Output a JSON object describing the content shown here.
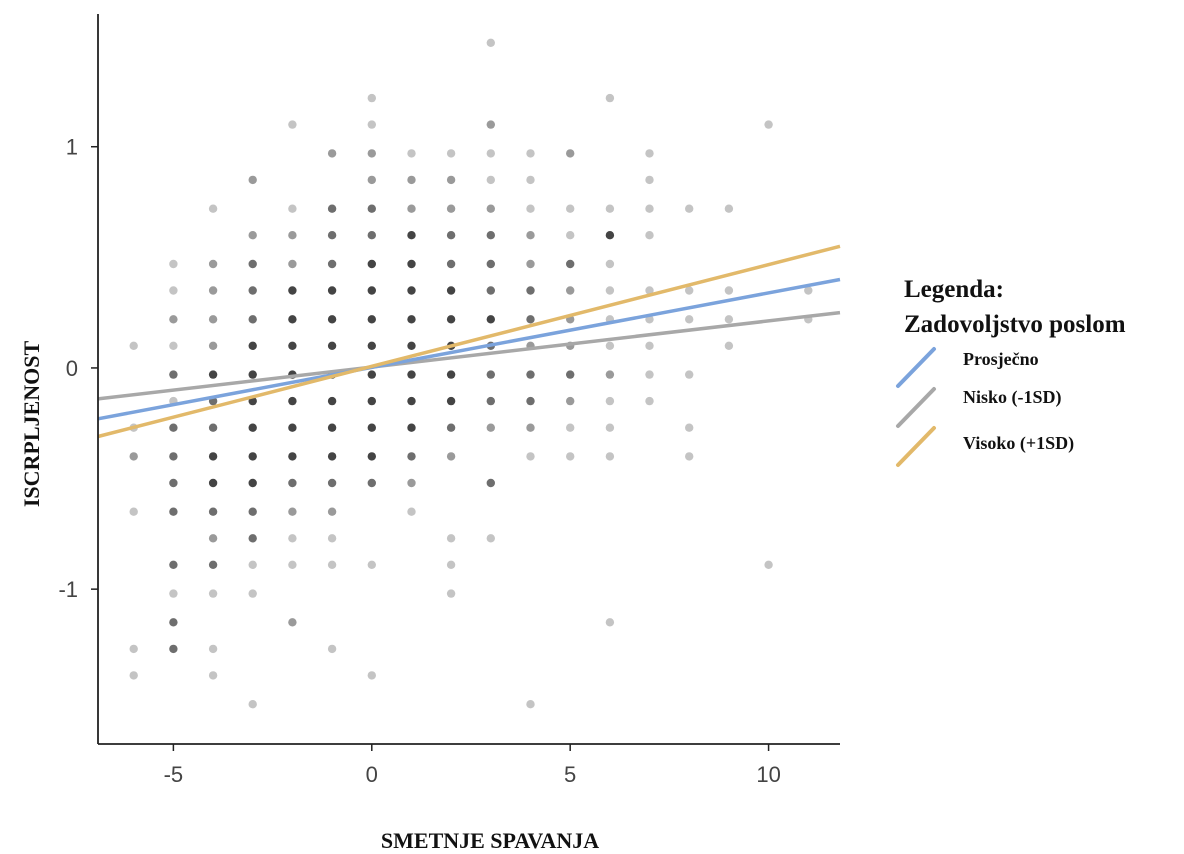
{
  "chart_data": {
    "type": "scatter",
    "xlabel": "SMETNJE SPAVANJA",
    "ylabel": "ISCRPLJENOST",
    "xlim": [
      -6.9,
      11.8
    ],
    "ylim": [
      -1.7,
      1.6
    ],
    "x_ticks": [
      -5,
      0,
      5,
      10
    ],
    "x_tick_labels": [
      "-5",
      "0",
      "5",
      "10"
    ],
    "y_ticks": [
      -1,
      0,
      1
    ],
    "y_tick_labels": [
      "-1",
      "0",
      "1"
    ],
    "grid": false,
    "legend": {
      "position": "right",
      "title_lines": [
        "Legenda:",
        "Zadovoljstvo poslom"
      ],
      "entries": [
        {
          "label": "Prosječno",
          "color": "#7ba3dc"
        },
        {
          "label": "Nisko (-1SD)",
          "color": "#a8a8a8"
        },
        {
          "label": "Visoko (+1SD)",
          "color": "#e2b96a"
        }
      ]
    },
    "series": [
      {
        "name": "Prosječno",
        "type": "line",
        "color": "#7ba3dc",
        "x": [
          -6.9,
          11.8
        ],
        "y": [
          -0.23,
          0.4
        ]
      },
      {
        "name": "Nisko (-1SD)",
        "type": "line",
        "color": "#a8a8a8",
        "x": [
          -6.9,
          11.8
        ],
        "y": [
          -0.14,
          0.25
        ]
      },
      {
        "name": "Visoko (+1SD)",
        "type": "line",
        "color": "#e2b96a",
        "x": [
          -6.9,
          11.8
        ],
        "y": [
          -0.31,
          0.55
        ]
      }
    ],
    "points": [
      [
        -6,
        0.1,
        1
      ],
      [
        -6,
        -0.27,
        1
      ],
      [
        -6,
        -0.4,
        2
      ],
      [
        -6,
        -0.65,
        1
      ],
      [
        -6,
        -1.27,
        1
      ],
      [
        -6,
        -1.39,
        1
      ],
      [
        -5,
        0.47,
        1
      ],
      [
        -5,
        0.35,
        1
      ],
      [
        -5,
        0.22,
        2
      ],
      [
        -5,
        0.1,
        1
      ],
      [
        -5,
        -0.03,
        3
      ],
      [
        -5,
        -0.15,
        1
      ],
      [
        -5,
        -0.27,
        3
      ],
      [
        -5,
        -0.4,
        3
      ],
      [
        -5,
        -0.52,
        3
      ],
      [
        -5,
        -0.65,
        3
      ],
      [
        -5,
        -0.89,
        3
      ],
      [
        -5,
        -1.02,
        1
      ],
      [
        -5,
        -1.15,
        3
      ],
      [
        -5,
        -1.27,
        3
      ],
      [
        -4,
        0.72,
        1
      ],
      [
        -4,
        0.47,
        2
      ],
      [
        -4,
        0.35,
        2
      ],
      [
        -4,
        0.22,
        2
      ],
      [
        -4,
        0.1,
        2
      ],
      [
        -4,
        -0.03,
        4
      ],
      [
        -4,
        -0.15,
        3
      ],
      [
        -4,
        -0.27,
        3
      ],
      [
        -4,
        -0.4,
        4
      ],
      [
        -4,
        -0.52,
        4
      ],
      [
        -4,
        -0.65,
        3
      ],
      [
        -4,
        -0.77,
        2
      ],
      [
        -4,
        -0.89,
        3
      ],
      [
        -4,
        -1.02,
        1
      ],
      [
        -4,
        -1.27,
        1
      ],
      [
        -4,
        -1.39,
        1
      ],
      [
        -3,
        0.85,
        2
      ],
      [
        -3,
        0.6,
        2
      ],
      [
        -3,
        0.47,
        3
      ],
      [
        -3,
        0.35,
        3
      ],
      [
        -3,
        0.22,
        3
      ],
      [
        -3,
        0.1,
        4
      ],
      [
        -3,
        -0.03,
        4
      ],
      [
        -3,
        -0.15,
        4
      ],
      [
        -3,
        -0.27,
        4
      ],
      [
        -3,
        -0.4,
        4
      ],
      [
        -3,
        -0.52,
        4
      ],
      [
        -3,
        -0.65,
        3
      ],
      [
        -3,
        -0.77,
        3
      ],
      [
        -3,
        -0.89,
        1
      ],
      [
        -3,
        -1.02,
        1
      ],
      [
        -3,
        -1.52,
        1
      ],
      [
        -2,
        1.1,
        1
      ],
      [
        -2,
        0.72,
        1
      ],
      [
        -2,
        0.6,
        2
      ],
      [
        -2,
        0.47,
        2
      ],
      [
        -2,
        0.35,
        4
      ],
      [
        -2,
        0.22,
        4
      ],
      [
        -2,
        0.1,
        4
      ],
      [
        -2,
        -0.03,
        4
      ],
      [
        -2,
        -0.15,
        4
      ],
      [
        -2,
        -0.27,
        4
      ],
      [
        -2,
        -0.4,
        4
      ],
      [
        -2,
        -0.52,
        3
      ],
      [
        -2,
        -0.65,
        2
      ],
      [
        -2,
        -0.77,
        1
      ],
      [
        -2,
        -0.89,
        1
      ],
      [
        -2,
        -1.15,
        2
      ],
      [
        -1,
        0.97,
        2
      ],
      [
        -1,
        0.72,
        3
      ],
      [
        -1,
        0.6,
        3
      ],
      [
        -1,
        0.47,
        3
      ],
      [
        -1,
        0.35,
        4
      ],
      [
        -1,
        0.22,
        4
      ],
      [
        -1,
        0.1,
        4
      ],
      [
        -1,
        -0.03,
        4
      ],
      [
        -1,
        -0.15,
        4
      ],
      [
        -1,
        -0.27,
        4
      ],
      [
        -1,
        -0.4,
        4
      ],
      [
        -1,
        -0.52,
        3
      ],
      [
        -1,
        -0.65,
        2
      ],
      [
        -1,
        -0.77,
        1
      ],
      [
        -1,
        -0.89,
        1
      ],
      [
        -1,
        -1.27,
        1
      ],
      [
        0,
        1.22,
        1
      ],
      [
        0,
        1.1,
        1
      ],
      [
        0,
        0.97,
        2
      ],
      [
        0,
        0.85,
        2
      ],
      [
        0,
        0.72,
        3
      ],
      [
        0,
        0.6,
        3
      ],
      [
        0,
        0.47,
        4
      ],
      [
        0,
        0.35,
        4
      ],
      [
        0,
        0.22,
        4
      ],
      [
        0,
        0.1,
        4
      ],
      [
        0,
        -0.03,
        4
      ],
      [
        0,
        -0.15,
        4
      ],
      [
        0,
        -0.27,
        4
      ],
      [
        0,
        -0.4,
        4
      ],
      [
        0,
        -0.52,
        3
      ],
      [
        0,
        -0.89,
        1
      ],
      [
        0,
        -1.39,
        1
      ],
      [
        1,
        0.97,
        1
      ],
      [
        1,
        0.85,
        2
      ],
      [
        1,
        0.72,
        2
      ],
      [
        1,
        0.6,
        4
      ],
      [
        1,
        0.47,
        4
      ],
      [
        1,
        0.35,
        4
      ],
      [
        1,
        0.22,
        4
      ],
      [
        1,
        0.1,
        4
      ],
      [
        1,
        -0.03,
        4
      ],
      [
        1,
        -0.15,
        4
      ],
      [
        1,
        -0.27,
        4
      ],
      [
        1,
        -0.4,
        3
      ],
      [
        1,
        -0.52,
        2
      ],
      [
        1,
        -0.65,
        1
      ],
      [
        2,
        0.97,
        1
      ],
      [
        2,
        0.85,
        2
      ],
      [
        2,
        0.72,
        2
      ],
      [
        2,
        0.6,
        3
      ],
      [
        2,
        0.47,
        3
      ],
      [
        2,
        0.35,
        4
      ],
      [
        2,
        0.22,
        4
      ],
      [
        2,
        0.1,
        4
      ],
      [
        2,
        -0.03,
        4
      ],
      [
        2,
        -0.15,
        4
      ],
      [
        2,
        -0.27,
        3
      ],
      [
        2,
        -0.4,
        2
      ],
      [
        2,
        -0.77,
        1
      ],
      [
        2,
        -0.89,
        1
      ],
      [
        2,
        -1.02,
        1
      ],
      [
        3,
        1.47,
        1
      ],
      [
        3,
        1.1,
        2
      ],
      [
        3,
        0.97,
        1
      ],
      [
        3,
        0.85,
        1
      ],
      [
        3,
        0.72,
        2
      ],
      [
        3,
        0.6,
        3
      ],
      [
        3,
        0.47,
        3
      ],
      [
        3,
        0.35,
        3
      ],
      [
        3,
        0.22,
        4
      ],
      [
        3,
        0.1,
        3
      ],
      [
        3,
        -0.03,
        3
      ],
      [
        3,
        -0.15,
        3
      ],
      [
        3,
        -0.27,
        2
      ],
      [
        3,
        -0.52,
        3
      ],
      [
        3,
        -0.77,
        1
      ],
      [
        4,
        0.97,
        1
      ],
      [
        4,
        0.85,
        1
      ],
      [
        4,
        0.72,
        1
      ],
      [
        4,
        0.6,
        2
      ],
      [
        4,
        0.47,
        2
      ],
      [
        4,
        0.35,
        3
      ],
      [
        4,
        0.22,
        3
      ],
      [
        4,
        0.1,
        2
      ],
      [
        4,
        -0.03,
        3
      ],
      [
        4,
        -0.15,
        3
      ],
      [
        4,
        -0.27,
        2
      ],
      [
        4,
        -0.4,
        1
      ],
      [
        4,
        -1.52,
        1
      ],
      [
        5,
        0.97,
        2
      ],
      [
        5,
        0.72,
        1
      ],
      [
        5,
        0.6,
        1
      ],
      [
        5,
        0.47,
        3
      ],
      [
        5,
        0.35,
        2
      ],
      [
        5,
        0.22,
        2
      ],
      [
        5,
        0.1,
        2
      ],
      [
        5,
        -0.03,
        3
      ],
      [
        5,
        -0.15,
        2
      ],
      [
        5,
        -0.27,
        1
      ],
      [
        5,
        -0.4,
        1
      ],
      [
        6,
        1.22,
        1
      ],
      [
        6,
        0.72,
        1
      ],
      [
        6,
        0.6,
        4
      ],
      [
        6,
        0.47,
        1
      ],
      [
        6,
        0.35,
        1
      ],
      [
        6,
        0.22,
        1
      ],
      [
        6,
        0.1,
        1
      ],
      [
        6,
        -0.03,
        2
      ],
      [
        6,
        -0.15,
        1
      ],
      [
        6,
        -0.27,
        1
      ],
      [
        6,
        -0.4,
        1
      ],
      [
        6,
        -1.15,
        1
      ],
      [
        7,
        0.97,
        1
      ],
      [
        7,
        0.85,
        1
      ],
      [
        7,
        0.72,
        1
      ],
      [
        7,
        0.6,
        1
      ],
      [
        7,
        0.35,
        1
      ],
      [
        7,
        0.22,
        1
      ],
      [
        7,
        0.1,
        1
      ],
      [
        7,
        -0.03,
        1
      ],
      [
        7,
        -0.15,
        1
      ],
      [
        8,
        0.72,
        1
      ],
      [
        8,
        0.35,
        1
      ],
      [
        8,
        0.22,
        1
      ],
      [
        8,
        -0.03,
        1
      ],
      [
        8,
        -0.27,
        1
      ],
      [
        8,
        -0.4,
        1
      ],
      [
        9,
        0.72,
        1
      ],
      [
        9,
        0.35,
        1
      ],
      [
        9,
        0.22,
        1
      ],
      [
        9,
        0.1,
        1
      ],
      [
        10,
        1.1,
        1
      ],
      [
        10,
        -0.89,
        1
      ],
      [
        11,
        0.35,
        1
      ],
      [
        11,
        0.22,
        1
      ]
    ],
    "point_shades": [
      "#c4c4c4",
      "#9a9a9a",
      "#6e6e6e",
      "#444444"
    ]
  }
}
